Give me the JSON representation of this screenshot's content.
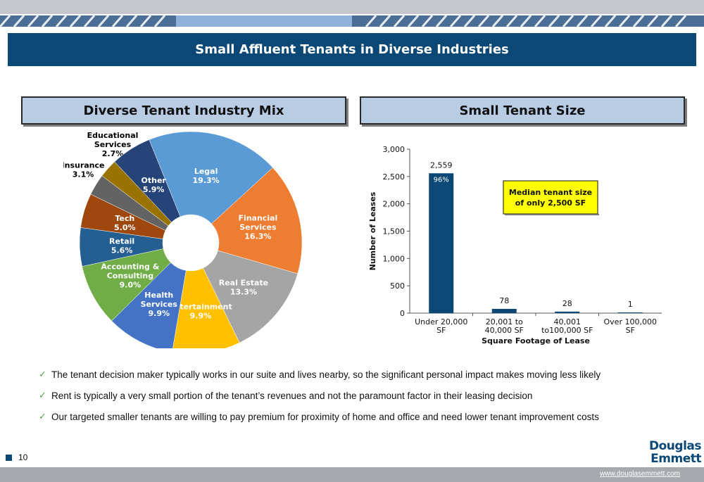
{
  "title": "Small Affluent Tenants in Diverse Industries",
  "left_header": "Diverse Tenant Industry Mix",
  "right_header": "Small Tenant Size",
  "callout": [
    "Median tenant size",
    "of only 2,500 SF"
  ],
  "bullets": [
    "The tenant decision maker typically works in our suite and lives nearby, so the significant personal impact makes moving less likely",
    "Rent is typically a very small portion of the tenant’s revenues and not the paramount factor in their leasing decision",
    "Our targeted smaller tenants are willing to pay premium for proximity of home and office and need lower tenant improvement costs"
  ],
  "page_number": "10",
  "logo": [
    "Douglas",
    "Emmett"
  ],
  "website": "www.douglasemmett.com",
  "chart_data": [
    {
      "type": "pie",
      "donut": true,
      "title": "",
      "slices": [
        {
          "label": [
            "Legal"
          ],
          "pct": "19.3%",
          "value": 19.3,
          "color": "#5b9bd5",
          "text_color": "#ffffff"
        },
        {
          "label": [
            "Financial",
            "Services"
          ],
          "pct": "16.3%",
          "value": 16.3,
          "color": "#ed7d31",
          "text_color": "#ffffff"
        },
        {
          "label": [
            "Real Estate"
          ],
          "pct": "13.3%",
          "value": 13.3,
          "color": "#a5a5a5",
          "text_color": "#ffffff"
        },
        {
          "label": [
            "Entertainment"
          ],
          "pct": "9.9%",
          "value": 9.9,
          "color": "#ffc000",
          "text_color": "#ffffff"
        },
        {
          "label": [
            "Health",
            "Services"
          ],
          "pct": "9.9%",
          "value": 9.9,
          "color": "#4472c4",
          "text_color": "#ffffff"
        },
        {
          "label": [
            "Accounting &",
            "Consulting"
          ],
          "pct": "9.0%",
          "value": 9.0,
          "color": "#70ad47",
          "text_color": "#ffffff"
        },
        {
          "label": [
            "Retail"
          ],
          "pct": "5.6%",
          "value": 5.6,
          "color": "#255e91",
          "text_color": "#ffffff"
        },
        {
          "label": [
            "Tech"
          ],
          "pct": "5.0%",
          "value": 5.0,
          "color": "#9e480e",
          "text_color": "#ffffff"
        },
        {
          "label": [
            "Insurance"
          ],
          "pct": "3.1%",
          "value": 3.1,
          "color": "#636363",
          "text_color": "#000000",
          "outside": true
        },
        {
          "label": [
            "Educational",
            "Services"
          ],
          "pct": "2.7%",
          "value": 2.7,
          "color": "#997300",
          "text_color": "#000000",
          "outside": true
        },
        {
          "label": [
            "Other"
          ],
          "pct": "5.9%",
          "value": 5.9,
          "color": "#264478",
          "text_color": "#ffffff"
        }
      ]
    },
    {
      "type": "bar",
      "title": "",
      "categories": [
        [
          "Under 20,000",
          "SF"
        ],
        [
          "20,001 to",
          "40,000 SF"
        ],
        [
          "40,001",
          "to100,000 SF"
        ],
        [
          "Over 100,000",
          "SF"
        ]
      ],
      "values": [
        2559,
        78,
        28,
        1
      ],
      "value_labels": [
        "2,559",
        "78",
        "28",
        "1"
      ],
      "inner_labels": [
        "96%",
        "",
        "",
        ""
      ],
      "bar_color": "#0b4876",
      "xlabel": "Square Footage of Lease",
      "ylabel": "Number of Leases",
      "ylim": [
        0,
        3000
      ],
      "yticks": [
        0,
        500,
        1000,
        1500,
        2000,
        2500,
        3000
      ],
      "ytick_labels": [
        "0",
        "500",
        "1,000",
        "1,500",
        "2,000",
        "2,500",
        "3,000"
      ],
      "grid": false
    }
  ]
}
